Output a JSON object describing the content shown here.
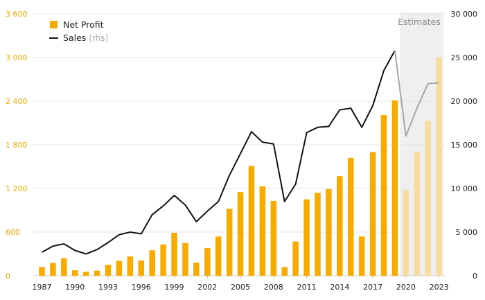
{
  "chart_data": {
    "type": "bar+line",
    "estimates_label": "Estimates",
    "estimates_from": 2020,
    "legend": [
      {
        "label": "Net Profit",
        "marker": "bar"
      },
      {
        "label": "Sales",
        "suffix": "(rhs)",
        "marker": "line"
      }
    ],
    "x": [
      1987,
      1988,
      1989,
      1990,
      1991,
      1992,
      1993,
      1994,
      1995,
      1996,
      1997,
      1998,
      1999,
      2000,
      2001,
      2002,
      2003,
      2004,
      2005,
      2006,
      2007,
      2008,
      2009,
      2010,
      2011,
      2012,
      2013,
      2014,
      2015,
      2016,
      2017,
      2018,
      2019,
      2020,
      2021,
      2022,
      2023
    ],
    "x_ticks": [
      "1987",
      "1990",
      "1993",
      "1996",
      "1999",
      "2002",
      "2005",
      "2008",
      "2011",
      "2014",
      "2017",
      "2020",
      "2023"
    ],
    "x_tick_values": [
      1987,
      1990,
      1993,
      1996,
      1999,
      2002,
      2005,
      2008,
      2011,
      2014,
      2017,
      2020,
      2023
    ],
    "series": [
      {
        "name": "Net Profit",
        "axis": "left",
        "values": [
          120,
          175,
          240,
          75,
          55,
          70,
          150,
          205,
          265,
          210,
          350,
          430,
          590,
          450,
          180,
          380,
          540,
          920,
          1150,
          1510,
          1230,
          1030,
          120,
          470,
          1050,
          1140,
          1190,
          1370,
          1620,
          540,
          1700,
          2210,
          2410,
          1180,
          1700,
          2130,
          3000
        ]
      },
      {
        "name": "Sales",
        "axis": "right",
        "values": [
          2700,
          3400,
          3650,
          2900,
          2500,
          3000,
          3800,
          4700,
          5000,
          4800,
          7000,
          8000,
          9200,
          8100,
          6200,
          7400,
          8500,
          11500,
          14000,
          16500,
          15300,
          15100,
          8500,
          10500,
          16400,
          17000,
          17100,
          19000,
          19200,
          17000,
          19500,
          23500,
          25800,
          16000,
          19200,
          22000,
          22100
        ]
      }
    ],
    "left_axis": {
      "ticks": [
        "0",
        "600",
        "1 200",
        "1 800",
        "2 400",
        "3 000",
        "3 600"
      ],
      "tick_values": [
        0,
        600,
        1200,
        1800,
        2400,
        3000,
        3600
      ],
      "ylim": [
        0,
        3600
      ]
    },
    "right_axis": {
      "ticks": [
        "0",
        "5 000",
        "10 000",
        "15 000",
        "20 000",
        "25 000",
        "30 000"
      ],
      "tick_values": [
        0,
        5000,
        10000,
        15000,
        20000,
        25000,
        30000
      ],
      "ylim": [
        0,
        30000
      ]
    },
    "grid": true,
    "legend_position": "top-left",
    "colors": {
      "bar": "#f5ab00",
      "bar_estimate": "#f7dca0",
      "line": "#111111",
      "line_estimate": "#a5a5a5",
      "estimate_band": "#efefef",
      "left_axis_text": "#f5a800",
      "grid": "#e4e4e4"
    }
  }
}
